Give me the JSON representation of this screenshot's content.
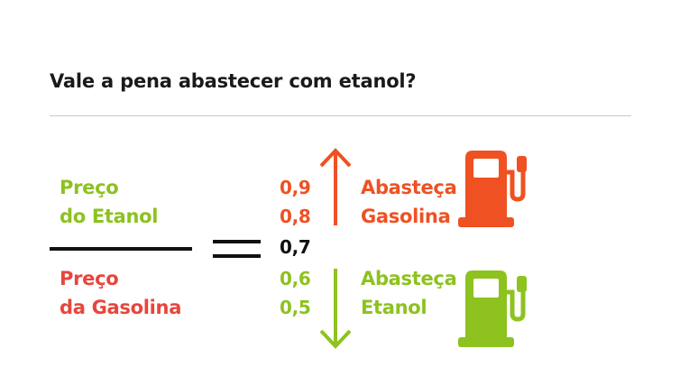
{
  "title": "Vale a pena abastecer com etanol?",
  "fraction": {
    "numerator": [
      "Preço",
      "do Etanol"
    ],
    "denominator": [
      "Preço",
      "da Gasolina"
    ]
  },
  "scale": {
    "upper": [
      "0,9",
      "0,8"
    ],
    "threshold": "0,7",
    "lower": [
      "0,6",
      "0,5"
    ]
  },
  "outcomes": {
    "gasoline": [
      "Abasteça",
      "Gasolina"
    ],
    "ethanol": [
      "Abasteça",
      "Etanol"
    ]
  },
  "colors": {
    "green": "#8dc21f",
    "red": "#e8453c",
    "orange": "#ef5122",
    "text": "#1a1a1a"
  },
  "icons": {
    "gasoline": "fuel-pump-icon",
    "ethanol": "fuel-pump-icon"
  }
}
